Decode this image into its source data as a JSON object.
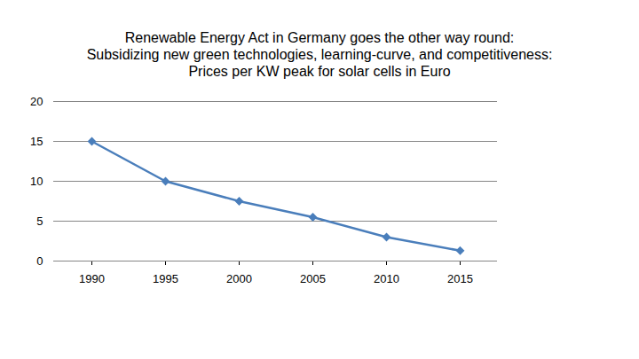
{
  "chart_data": {
    "type": "line",
    "title": "Renewable Energy Act in Germany goes the other way round:\nSubsidizing new green technologies, learning-curve, and competitiveness:\nPrices per KW peak for solar cells in Euro",
    "categories": [
      "1990",
      "1995",
      "2000",
      "2005",
      "2010",
      "2015"
    ],
    "values": [
      15,
      10,
      7.5,
      5.5,
      3,
      1.3
    ],
    "color": "#4a7ebb",
    "marker": "diamond",
    "ylim": [
      0,
      20
    ],
    "yticks": [
      0,
      5,
      10,
      15,
      20
    ],
    "grid": true
  }
}
